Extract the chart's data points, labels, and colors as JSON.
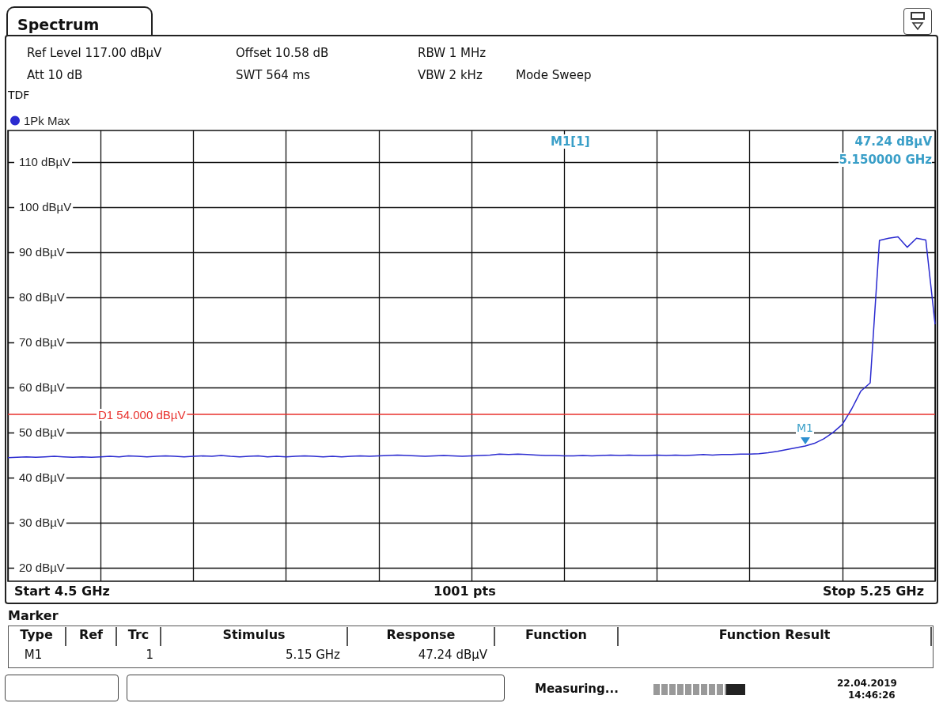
{
  "chart_data": {
    "type": "line",
    "title": "Spectrum",
    "categories": [
      null,
      null,
      null,
      null,
      null,
      null,
      null,
      null,
      null,
      null,
      null,
      null,
      null,
      null,
      null,
      null,
      null,
      null,
      null,
      null,
      null,
      null,
      null,
      null,
      null,
      null,
      null,
      null,
      null,
      null,
      null,
      null,
      null,
      null,
      null,
      null,
      null,
      null,
      null,
      null,
      null,
      null,
      null,
      null,
      null,
      null,
      null,
      null,
      null,
      null,
      null,
      null,
      null,
      null,
      null,
      null,
      null,
      null,
      null,
      null,
      null,
      null,
      null,
      null,
      null,
      null,
      null,
      null,
      null,
      null,
      null,
      null,
      null,
      null,
      null,
      null,
      null,
      null,
      null,
      null,
      null,
      null,
      null,
      null,
      null,
      null,
      null,
      null,
      null,
      null,
      null,
      null,
      null,
      null,
      null,
      null,
      null,
      null,
      null,
      null,
      null
    ],
    "series": [
      {
        "name": "1Pk Max",
        "color": "#2b2bd0",
        "values": [
          44.4,
          44.5,
          44.6,
          44.5,
          44.6,
          44.7,
          44.6,
          44.5,
          44.6,
          44.5,
          44.6,
          44.7,
          44.6,
          44.8,
          44.7,
          44.6,
          44.7,
          44.8,
          44.7,
          44.6,
          44.7,
          44.8,
          44.7,
          44.9,
          44.7,
          44.6,
          44.7,
          44.8,
          44.6,
          44.7,
          44.6,
          44.7,
          44.8,
          44.7,
          44.6,
          44.7,
          44.6,
          44.7,
          44.8,
          44.7,
          44.8,
          44.9,
          45.0,
          44.9,
          44.8,
          44.7,
          44.8,
          44.9,
          44.8,
          44.7,
          44.8,
          44.9,
          45.0,
          45.2,
          45.1,
          45.2,
          45.1,
          45.0,
          44.9,
          44.9,
          44.8,
          44.8,
          44.9,
          44.8,
          44.9,
          45.0,
          44.9,
          45.0,
          44.9,
          44.9,
          45.0,
          44.9,
          45.0,
          44.9,
          45.0,
          45.1,
          45.0,
          45.1,
          45.1,
          45.2,
          45.2,
          45.3,
          45.5,
          45.8,
          46.2,
          46.6,
          47.0,
          47.6,
          48.6,
          50.0,
          51.8,
          55.2,
          59.2,
          61.0,
          92.6,
          93.1,
          93.4,
          91.1,
          93.1,
          92.7,
          74
        ]
      }
    ],
    "ylim": [
      17,
      117
    ],
    "yticks": [
      {
        "value": 20,
        "label": "20 dBµV"
      },
      {
        "value": 30,
        "label": "30 dBµV"
      },
      {
        "value": 40,
        "label": "40 dBµV"
      },
      {
        "value": 50,
        "label": "50 dBµV"
      },
      {
        "value": 60,
        "label": "60 dBµV"
      },
      {
        "value": 70,
        "label": "70 dBµV"
      },
      {
        "value": 80,
        "label": "80 dBµV"
      },
      {
        "value": 90,
        "label": "90 dBµV"
      },
      {
        "value": 100,
        "label": "100 dBµV"
      },
      {
        "value": 110,
        "label": "110 dBµV"
      }
    ],
    "tick_labels": "y",
    "grid": true,
    "legend": "top left",
    "marker": "none",
    "line_style": "solid",
    "ref_lines": [
      {
        "axis": "y",
        "value": 54,
        "label": "D1 54.000 dBµV",
        "color": "#e8302c"
      }
    ],
    "annotations": [
      "Ref Level 117.00 dBµV",
      "Att 10 dB",
      "Offset 10.58 dB",
      "SWT 564 ms",
      "RBW 1 MHz",
      "VBW 2 kHz",
      "Mode Sweep",
      "TDF",
      "M1[1]",
      "47.24 dBµV",
      "5.150000 GHz",
      {
        "text": "M1",
        "y": 47.24
      },
      "Start 4.5 GHz",
      "1001 pts",
      "Stop 5.25 GHz",
      "Marker",
      "Type",
      "Ref",
      "Trc",
      "Stimulus",
      "Response",
      "Function",
      "Function Result",
      "M1",
      "1",
      "5.15 GHz",
      "47.24 dBµV",
      "Measuring...",
      "22.04.2019",
      "14:46:26"
    ]
  }
}
